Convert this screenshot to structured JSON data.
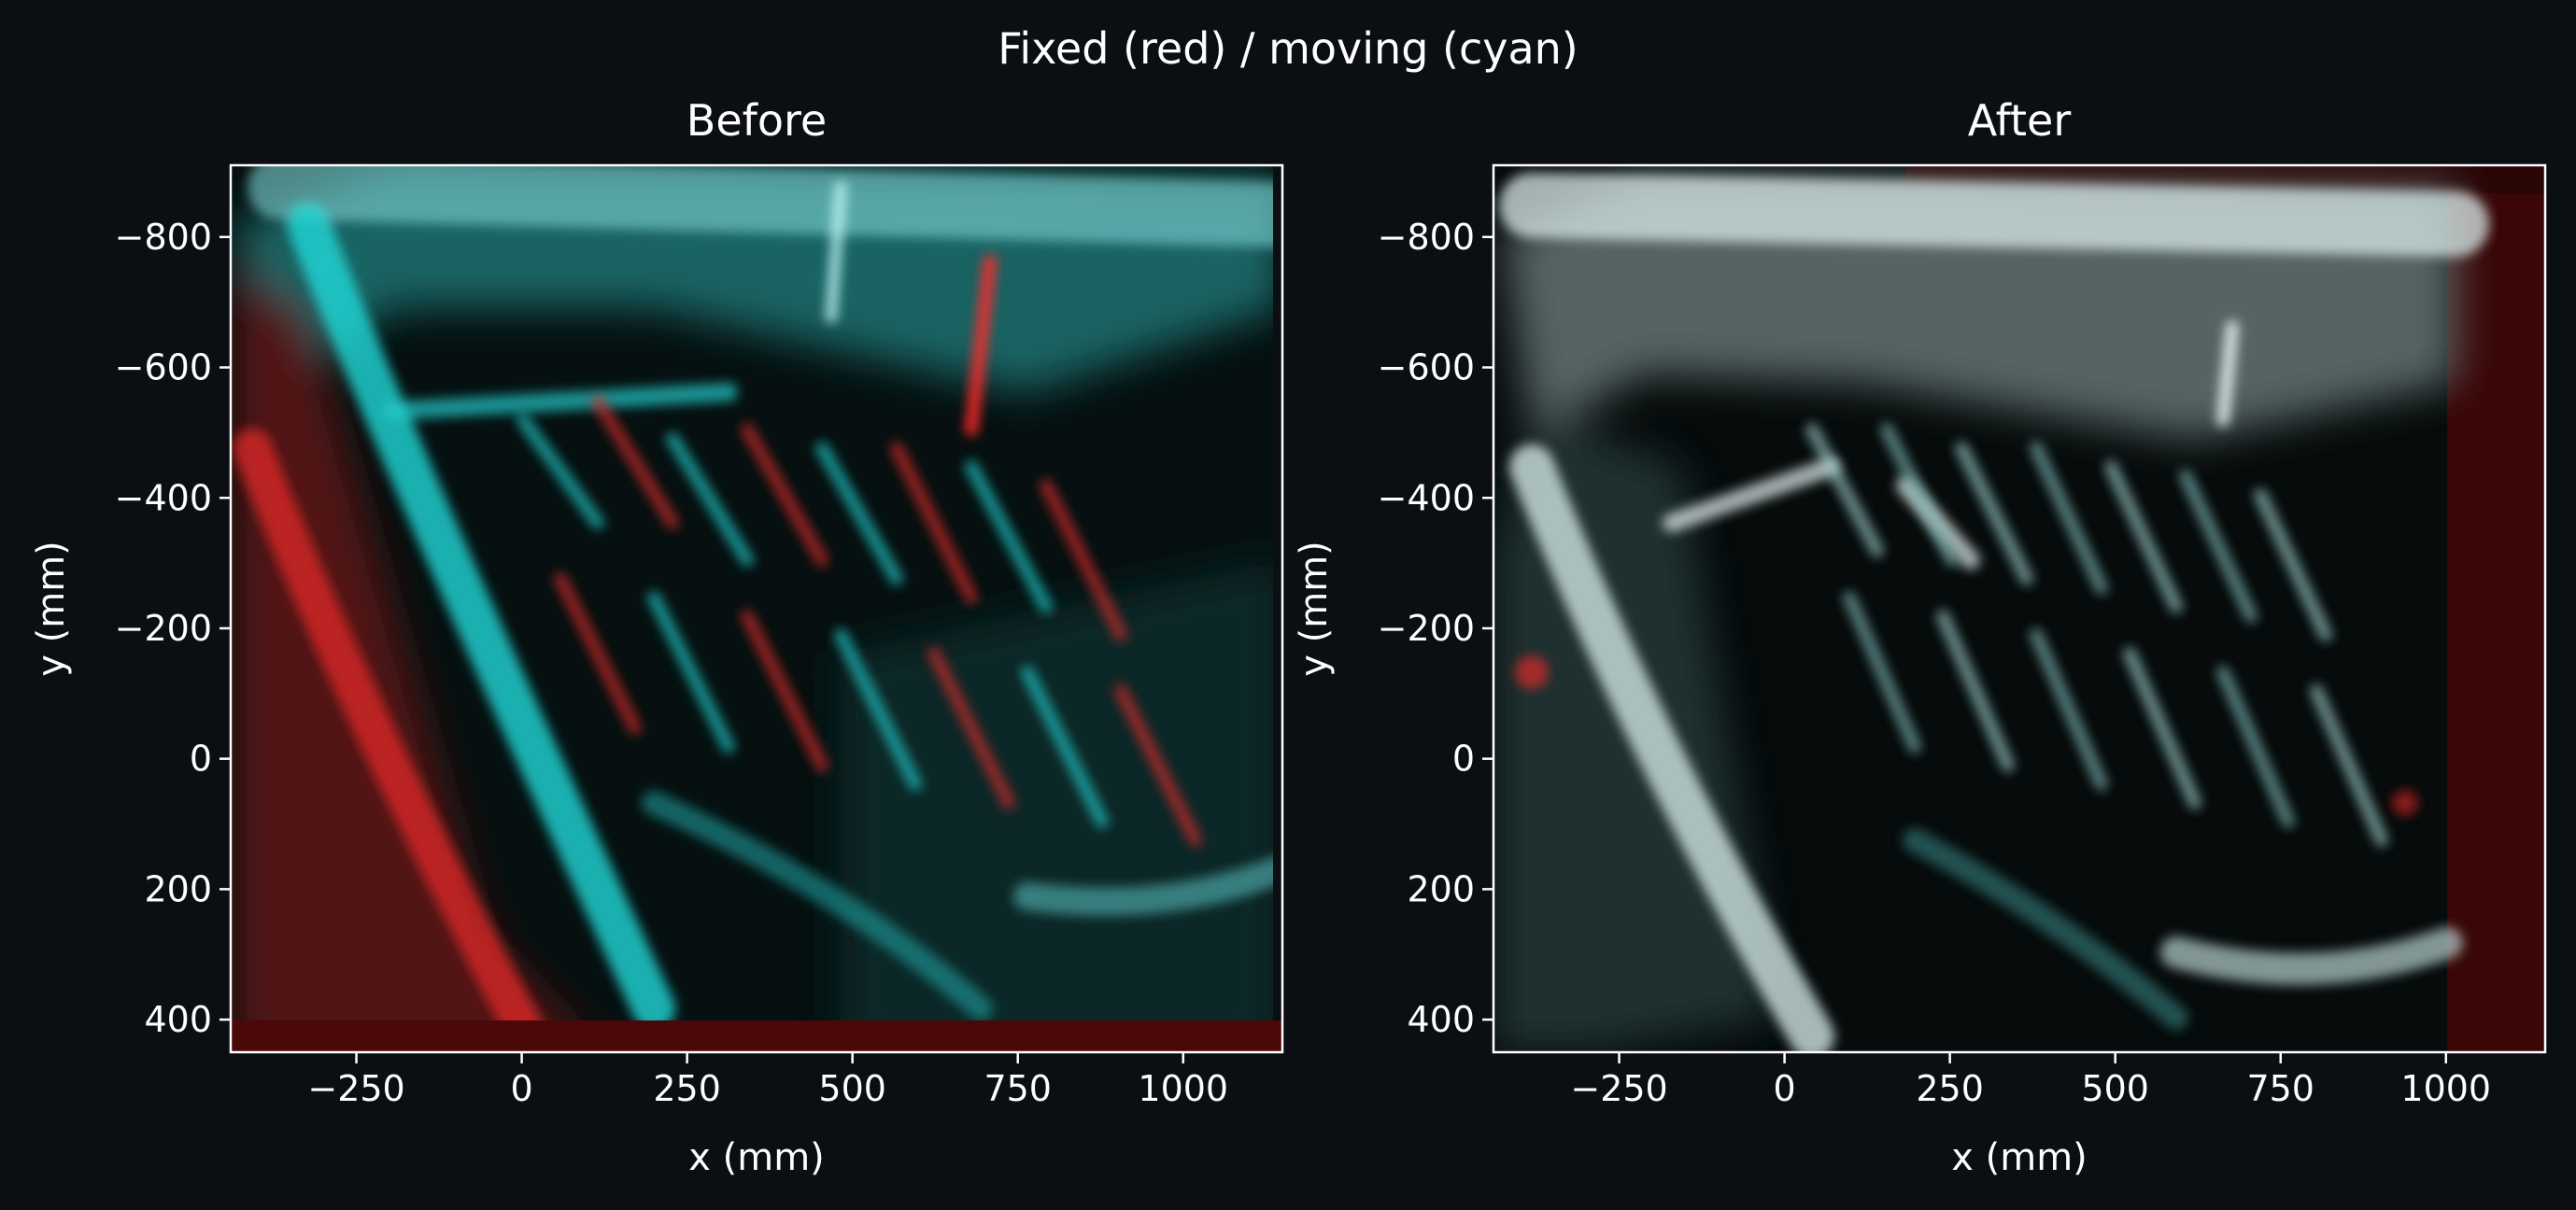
{
  "figure": {
    "suptitle": "Fixed (red) / moving (cyan)",
    "background": "#0b0e13",
    "text_color": "#ffffff"
  },
  "chart_data": [
    {
      "type": "heatmap",
      "title": "Before",
      "xlabel": "x (mm)",
      "ylabel": "y (mm)",
      "xlim": [
        -440,
        1150
      ],
      "ylim": [
        450,
        -910
      ],
      "x_ticks": [
        -250,
        0,
        250,
        500,
        750,
        1000
      ],
      "y_ticks": [
        -800,
        -600,
        -400,
        -200,
        0,
        200,
        400
      ],
      "x_tick_labels": [
        "−250",
        "0",
        "250",
        "500",
        "750",
        "1000"
      ],
      "y_tick_labels": [
        "−800",
        "−600",
        "−400",
        "−200",
        "0",
        "200",
        "400"
      ],
      "grid": false,
      "overlay_colors": {
        "fixed": "#ff2a2a",
        "moving": "#22e0e0"
      },
      "image_extent": {
        "x": [
          -440,
          1150
        ],
        "y": [
          -910,
          450
        ]
      }
    },
    {
      "type": "heatmap",
      "title": "After",
      "xlabel": "x (mm)",
      "ylabel": "y (mm)",
      "xlim": [
        -440,
        1150
      ],
      "ylim": [
        450,
        -910
      ],
      "x_ticks": [
        -250,
        0,
        250,
        500,
        750,
        1000
      ],
      "y_ticks": [
        -800,
        -600,
        -400,
        -200,
        0,
        200,
        400
      ],
      "x_tick_labels": [
        "−250",
        "0",
        "250",
        "500",
        "750",
        "1000"
      ],
      "y_tick_labels": [
        "−800",
        "−600",
        "−400",
        "−200",
        "0",
        "200",
        "400"
      ],
      "grid": false,
      "overlay_colors": {
        "fixed": "#ff2a2a",
        "moving": "#22e0e0"
      },
      "image_extent": {
        "x": [
          -440,
          1150
        ],
        "y": [
          -910,
          450
        ]
      }
    }
  ]
}
